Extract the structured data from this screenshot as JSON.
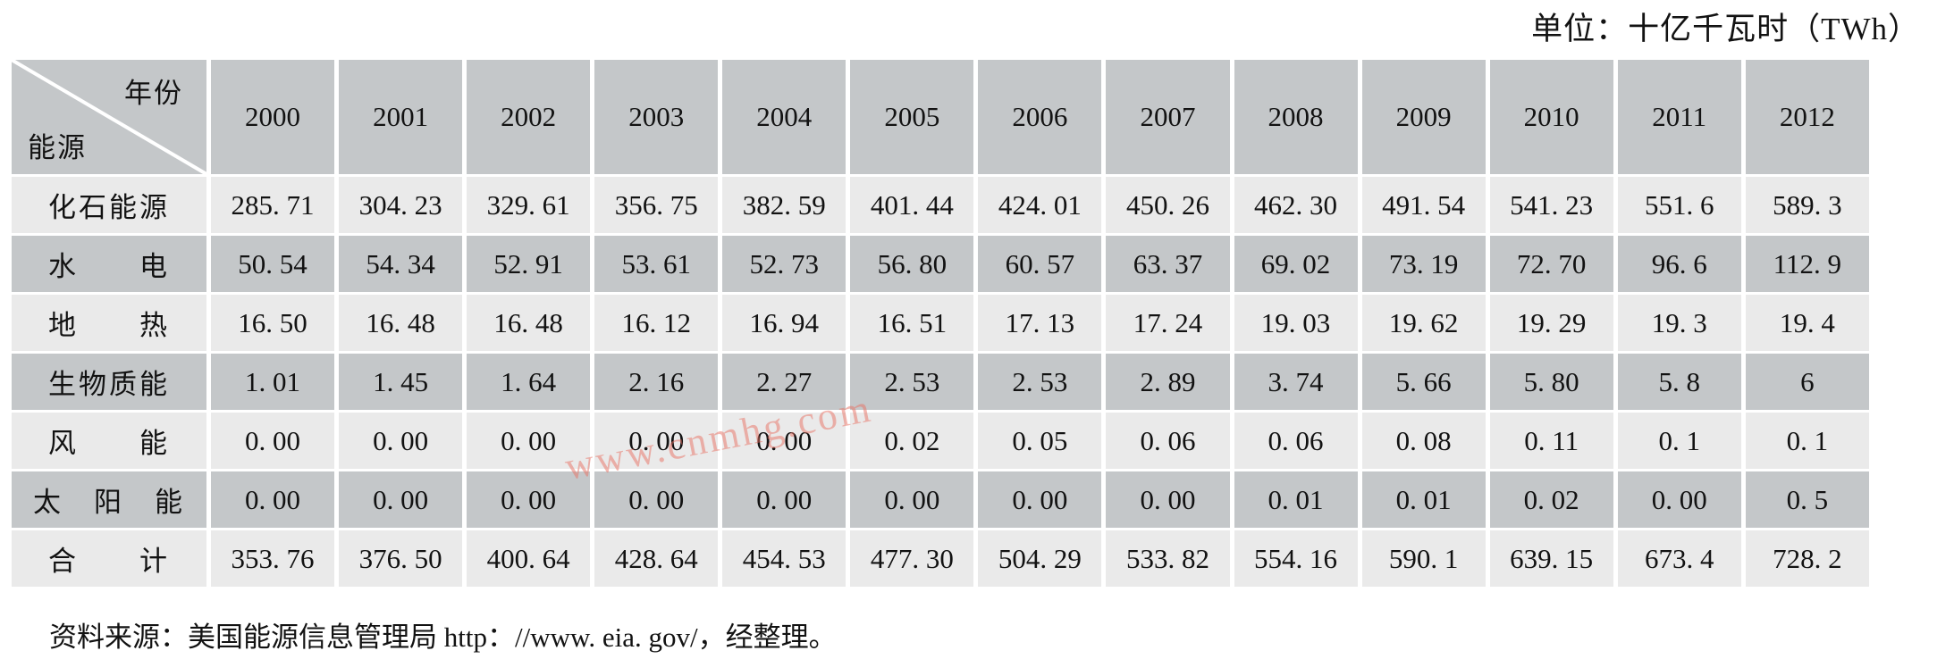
{
  "unit_label": "单位：十亿千瓦时（TWh）",
  "watermark": "www.cnmhg.com",
  "source_note": "资料来源：美国能源信息管理局 http：//www. eia. gov/，经整理。",
  "corner": {
    "year_label": "年份",
    "energy_label": "能源"
  },
  "years": [
    "2000",
    "2001",
    "2002",
    "2003",
    "2004",
    "2005",
    "2006",
    "2007",
    "2008",
    "2009",
    "2010",
    "2011",
    "2012"
  ],
  "rows": [
    {
      "label": "化石能源",
      "values": [
        "285. 71",
        "304. 23",
        "329. 61",
        "356. 75",
        "382. 59",
        "401. 44",
        "424. 01",
        "450. 26",
        "462. 30",
        "491. 54",
        "541. 23",
        "551. 6",
        "589. 3"
      ]
    },
    {
      "label": "水　　电",
      "values": [
        "50. 54",
        "54. 34",
        "52. 91",
        "53. 61",
        "52. 73",
        "56. 80",
        "60. 57",
        "63. 37",
        "69. 02",
        "73. 19",
        "72. 70",
        "96. 6",
        "112. 9"
      ]
    },
    {
      "label": "地　　热",
      "values": [
        "16. 50",
        "16. 48",
        "16. 48",
        "16. 12",
        "16. 94",
        "16. 51",
        "17. 13",
        "17. 24",
        "19. 03",
        "19. 62",
        "19. 29",
        "19. 3",
        "19. 4"
      ]
    },
    {
      "label": "生物质能",
      "values": [
        "1. 01",
        "1. 45",
        "1. 64",
        "2. 16",
        "2. 27",
        "2. 53",
        "2. 53",
        "2. 89",
        "3. 74",
        "5. 66",
        "5. 80",
        "5. 8",
        "6"
      ]
    },
    {
      "label": "风　　能",
      "values": [
        "0. 00",
        "0. 00",
        "0. 00",
        "0. 00",
        "0. 00",
        "0. 02",
        "0. 05",
        "0. 06",
        "0. 06",
        "0. 08",
        "0. 11",
        "0. 1",
        "0. 1"
      ]
    },
    {
      "label": "太　阳　能",
      "values": [
        "0. 00",
        "0. 00",
        "0. 00",
        "0. 00",
        "0. 00",
        "0. 00",
        "0. 00",
        "0. 00",
        "0. 01",
        "0. 01",
        "0. 02",
        "0. 00",
        "0. 5"
      ]
    },
    {
      "label": "合　　计",
      "values": [
        "353. 76",
        "376. 50",
        "400. 64",
        "428. 64",
        "454. 53",
        "477. 30",
        "504. 29",
        "533. 82",
        "554. 16",
        "590. 1",
        "639. 15",
        "673. 4",
        "728. 2"
      ]
    }
  ],
  "colors": {
    "header_bg": "#c4c7c9",
    "row_light": "#eaeaea",
    "row_dark": "#c4c7c9",
    "grid": "#ffffff",
    "watermark": "#e87062"
  },
  "chart_data": {
    "type": "table",
    "title": "美国可再生能源及化石能源发电量",
    "unit": "十亿千瓦时（TWh）",
    "columns": [
      "2000",
      "2001",
      "2002",
      "2003",
      "2004",
      "2005",
      "2006",
      "2007",
      "2008",
      "2009",
      "2010",
      "2011",
      "2012"
    ],
    "series": [
      {
        "name": "化石能源",
        "values": [
          285.71,
          304.23,
          329.61,
          356.75,
          382.59,
          401.44,
          424.01,
          450.26,
          462.3,
          491.54,
          541.23,
          551.6,
          589.3
        ]
      },
      {
        "name": "水电",
        "values": [
          50.54,
          54.34,
          52.91,
          53.61,
          52.73,
          56.8,
          60.57,
          63.37,
          69.02,
          73.19,
          72.7,
          96.6,
          112.9
        ]
      },
      {
        "name": "地热",
        "values": [
          16.5,
          16.48,
          16.48,
          16.12,
          16.94,
          16.51,
          17.13,
          17.24,
          19.03,
          19.62,
          19.29,
          19.3,
          19.4
        ]
      },
      {
        "name": "生物质能",
        "values": [
          1.01,
          1.45,
          1.64,
          2.16,
          2.27,
          2.53,
          2.53,
          2.89,
          3.74,
          5.66,
          5.8,
          5.8,
          6
        ]
      },
      {
        "name": "风能",
        "values": [
          0.0,
          0.0,
          0.0,
          0.0,
          0.0,
          0.02,
          0.05,
          0.06,
          0.06,
          0.08,
          0.11,
          0.1,
          0.1
        ]
      },
      {
        "name": "太阳能",
        "values": [
          0.0,
          0.0,
          0.0,
          0.0,
          0.0,
          0.0,
          0.0,
          0.0,
          0.01,
          0.01,
          0.02,
          0.0,
          0.5
        ]
      },
      {
        "name": "合计",
        "values": [
          353.76,
          376.5,
          400.64,
          428.64,
          454.53,
          477.3,
          504.29,
          533.82,
          554.16,
          590.1,
          639.15,
          673.4,
          728.2
        ]
      }
    ]
  }
}
